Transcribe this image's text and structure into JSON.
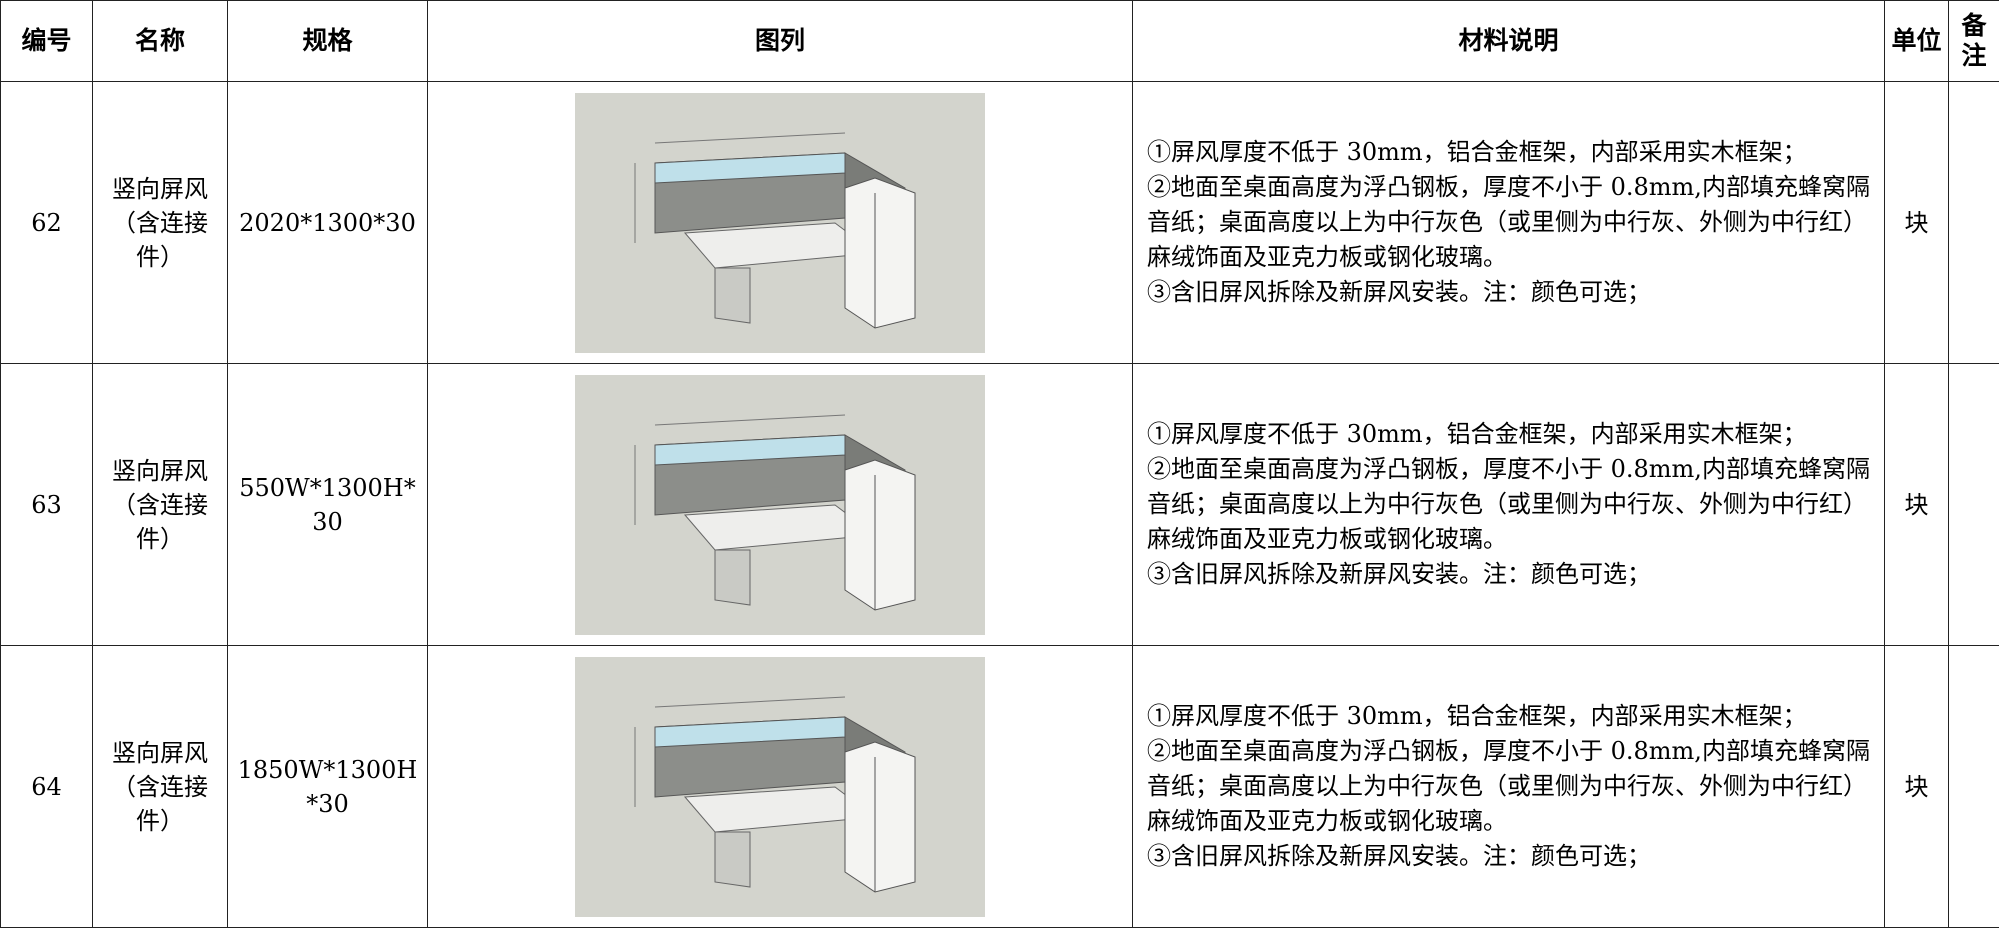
{
  "table": {
    "header": [
      "编号",
      "名称",
      "规格",
      "图列",
      "材料说明",
      "单位",
      "备注"
    ],
    "rows": [
      {
        "no": "62",
        "name": "竖向屏风 （含连接件）",
        "spec": "2020*1300*30",
        "desc": [
          "①屏风厚度不低于 30mm，铝合金框架，内部采用实木框架；",
          "②地面至桌面高度为浮凸钢板，厚度不小于 0.8mm,内部填充蜂窝隔音纸；桌面高度以上为中行灰色（或里侧为中行灰、外侧为中行红）麻绒饰面及亚克力板或钢化玻璃。",
          "③含旧屏风拆除及新屏风安装。注：颜色可选；"
        ],
        "unit": "块"
      },
      {
        "no": "63",
        "name": "竖向屏风（含连接件）",
        "spec": "550W*1300H*30",
        "desc": [
          "①屏风厚度不低于 30mm，铝合金框架，内部采用实木框架；",
          "②地面至桌面高度为浮凸钢板，厚度不小于 0.8mm,内部填充蜂窝隔音纸；桌面高度以上为中行灰色（或里侧为中行灰、外侧为中行红）麻绒饰面及亚克力板或钢化玻璃。",
          "③含旧屏风拆除及新屏风安装。注：颜色可选；"
        ],
        "unit": "块"
      },
      {
        "no": "64",
        "name": "竖向屏风 （含连接件）",
        "spec": "1850W*1300H*30",
        "desc": [
          "①屏风厚度不低于 30mm，铝合金框架，内部采用实木框架；",
          "②地面至桌面高度为浮凸钢板，厚度不小于 0.8mm,内部填充蜂窝隔音纸；桌面高度以上为中行灰色（或里侧为中行灰、外侧为中行红）麻绒饰面及亚克力板或钢化玻璃。",
          "③含旧屏风拆除及新屏风安装。注：颜色可选；"
        ],
        "unit": "块"
      }
    ]
  }
}
